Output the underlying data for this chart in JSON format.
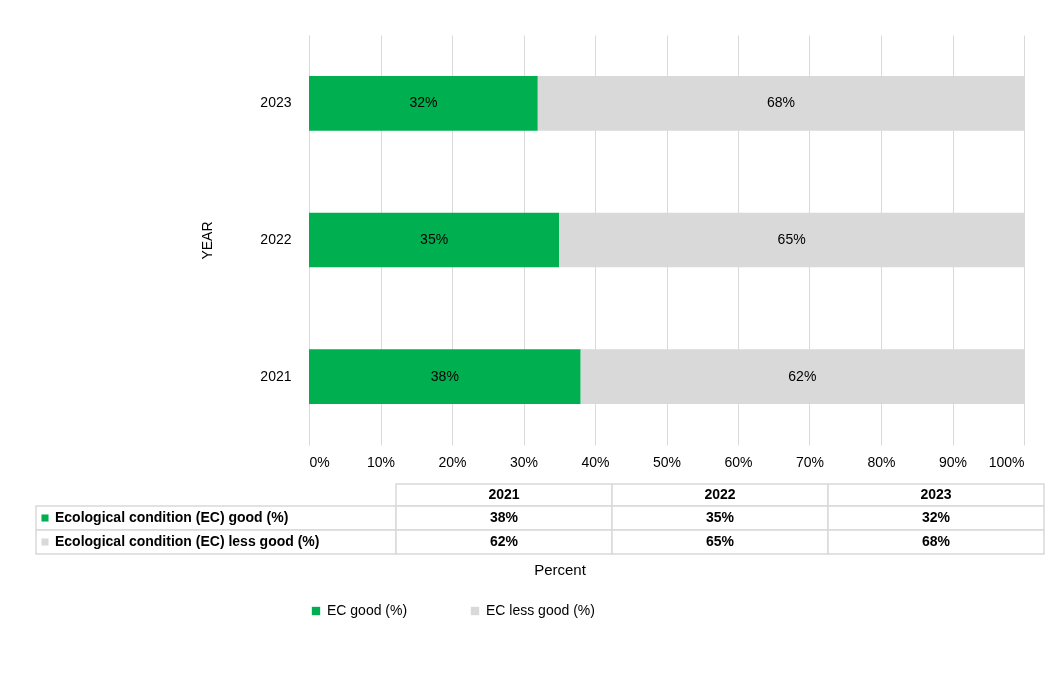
{
  "chart_data": {
    "type": "bar",
    "orientation": "horizontal",
    "stacked": true,
    "ylabel": "YEAR",
    "categories": [
      "2023",
      "2022",
      "2021"
    ],
    "series": [
      {
        "name": "EC good (%)",
        "color": "#00b050",
        "values": [
          32,
          35,
          38
        ],
        "value_labels": [
          "32%",
          "35%",
          "38%"
        ]
      },
      {
        "name": "EC less good (%)",
        "color": "#d9d9d9",
        "values": [
          68,
          65,
          62
        ],
        "value_labels": [
          "68%",
          "65%",
          "62%"
        ]
      }
    ],
    "xlim": [
      0,
      100
    ],
    "xticks": [
      {
        "value": 0,
        "label": "0%"
      },
      {
        "value": 10,
        "label": "10%"
      },
      {
        "value": 20,
        "label": "20%"
      },
      {
        "value": 30,
        "label": "30%"
      },
      {
        "value": 40,
        "label": "40%"
      },
      {
        "value": 50,
        "label": "50%"
      },
      {
        "value": 60,
        "label": "60%"
      },
      {
        "value": 70,
        "label": "70%"
      },
      {
        "value": 80,
        "label": "80%"
      },
      {
        "value": 90,
        "label": "90%"
      },
      {
        "value": 100,
        "label": "100%"
      }
    ],
    "grid": "x",
    "legend": "bottom",
    "annotations": [
      "Ecological condition (EC) good (%)",
      "Ecological condition (EC) less good (%)",
      "Percent"
    ]
  }
}
